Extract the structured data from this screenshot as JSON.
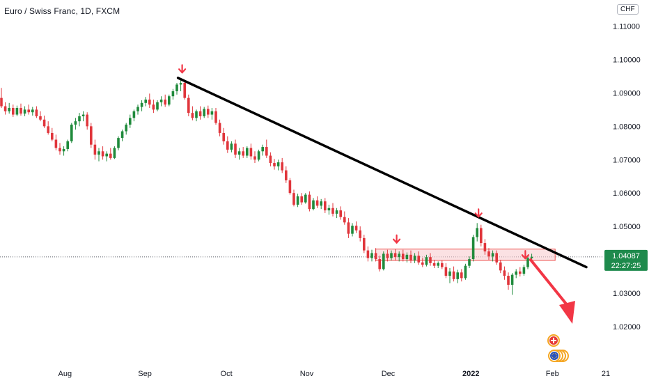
{
  "chart_data": {
    "type": "candlestick",
    "title": "Euro / Swiss Franc, 1D, FXCM",
    "currency_badge": "CHF",
    "y_ticks": [
      1.11,
      1.1,
      1.09,
      1.08,
      1.07,
      1.06,
      1.05,
      1.04,
      1.03,
      1.02
    ],
    "y_tick_labels": [
      "1.11000",
      "1.10000",
      "1.09000",
      "1.08000",
      "1.07000",
      "1.06000",
      "1.05000",
      "",
      "1.03000",
      "1.02000"
    ],
    "ylim": [
      1.011,
      1.112
    ],
    "x_labels": [
      "Aug",
      "Sep",
      "Oct",
      "Nov",
      "Dec",
      "2022",
      "Feb",
      "21"
    ],
    "last_price": "1.04087",
    "countdown": "22:27:25",
    "grid": false,
    "candles": [
      {
        "o": 1.0885,
        "h": 1.0915,
        "l": 1.0855,
        "c": 1.086
      },
      {
        "o": 1.086,
        "h": 1.0872,
        "l": 1.0835,
        "c": 1.0845
      },
      {
        "o": 1.0845,
        "h": 1.087,
        "l": 1.0838,
        "c": 1.0855
      },
      {
        "o": 1.0855,
        "h": 1.0865,
        "l": 1.0828,
        "c": 1.0835
      },
      {
        "o": 1.0835,
        "h": 1.0862,
        "l": 1.083,
        "c": 1.0855
      },
      {
        "o": 1.0855,
        "h": 1.0868,
        "l": 1.0832,
        "c": 1.0838
      },
      {
        "o": 1.0838,
        "h": 1.086,
        "l": 1.083,
        "c": 1.085
      },
      {
        "o": 1.085,
        "h": 1.0865,
        "l": 1.0835,
        "c": 1.0842
      },
      {
        "o": 1.0842,
        "h": 1.0858,
        "l": 1.0832,
        "c": 1.085
      },
      {
        "o": 1.085,
        "h": 1.086,
        "l": 1.0825,
        "c": 1.083
      },
      {
        "o": 1.083,
        "h": 1.0845,
        "l": 1.0815,
        "c": 1.082
      },
      {
        "o": 1.082,
        "h": 1.0832,
        "l": 1.0795,
        "c": 1.08
      },
      {
        "o": 1.08,
        "h": 1.0815,
        "l": 1.0775,
        "c": 1.078
      },
      {
        "o": 1.078,
        "h": 1.0795,
        "l": 1.0755,
        "c": 1.076
      },
      {
        "o": 1.076,
        "h": 1.0775,
        "l": 1.0728,
        "c": 1.0735
      },
      {
        "o": 1.0735,
        "h": 1.075,
        "l": 1.0715,
        "c": 1.0725
      },
      {
        "o": 1.0725,
        "h": 1.074,
        "l": 1.0712,
        "c": 1.0732
      },
      {
        "o": 1.0732,
        "h": 1.076,
        "l": 1.0725,
        "c": 1.0755
      },
      {
        "o": 1.0755,
        "h": 1.081,
        "l": 1.075,
        "c": 1.0805
      },
      {
        "o": 1.0805,
        "h": 1.0825,
        "l": 1.079,
        "c": 1.0815
      },
      {
        "o": 1.0815,
        "h": 1.084,
        "l": 1.08,
        "c": 1.083
      },
      {
        "o": 1.083,
        "h": 1.0845,
        "l": 1.0815,
        "c": 1.0835
      },
      {
        "o": 1.0835,
        "h": 1.0842,
        "l": 1.079,
        "c": 1.08
      },
      {
        "o": 1.08,
        "h": 1.081,
        "l": 1.0735,
        "c": 1.0745
      },
      {
        "o": 1.0745,
        "h": 1.076,
        "l": 1.07,
        "c": 1.0715
      },
      {
        "o": 1.0715,
        "h": 1.0735,
        "l": 1.0695,
        "c": 1.0725
      },
      {
        "o": 1.0725,
        "h": 1.074,
        "l": 1.07,
        "c": 1.071
      },
      {
        "o": 1.071,
        "h": 1.0725,
        "l": 1.0695,
        "c": 1.0718
      },
      {
        "o": 1.0718,
        "h": 1.0735,
        "l": 1.07,
        "c": 1.0705
      },
      {
        "o": 1.0705,
        "h": 1.074,
        "l": 1.0702,
        "c": 1.0735
      },
      {
        "o": 1.0735,
        "h": 1.077,
        "l": 1.0728,
        "c": 1.0765
      },
      {
        "o": 1.0765,
        "h": 1.079,
        "l": 1.0755,
        "c": 1.0785
      },
      {
        "o": 1.0785,
        "h": 1.081,
        "l": 1.0775,
        "c": 1.0805
      },
      {
        "o": 1.0805,
        "h": 1.0835,
        "l": 1.0795,
        "c": 1.0825
      },
      {
        "o": 1.0825,
        "h": 1.085,
        "l": 1.0815,
        "c": 1.0845
      },
      {
        "o": 1.0845,
        "h": 1.0865,
        "l": 1.0835,
        "c": 1.0858
      },
      {
        "o": 1.0858,
        "h": 1.0878,
        "l": 1.0845,
        "c": 1.087
      },
      {
        "o": 1.087,
        "h": 1.0888,
        "l": 1.086,
        "c": 1.088
      },
      {
        "o": 1.088,
        "h": 1.0898,
        "l": 1.0855,
        "c": 1.0865
      },
      {
        "o": 1.0865,
        "h": 1.088,
        "l": 1.084,
        "c": 1.085
      },
      {
        "o": 1.085,
        "h": 1.0878,
        "l": 1.0845,
        "c": 1.0872
      },
      {
        "o": 1.0872,
        "h": 1.089,
        "l": 1.086,
        "c": 1.088
      },
      {
        "o": 1.088,
        "h": 1.0895,
        "l": 1.0858,
        "c": 1.0865
      },
      {
        "o": 1.0865,
        "h": 1.0895,
        "l": 1.086,
        "c": 1.089
      },
      {
        "o": 1.089,
        "h": 1.0912,
        "l": 1.088,
        "c": 1.0905
      },
      {
        "o": 1.0905,
        "h": 1.093,
        "l": 1.0895,
        "c": 1.0925
      },
      {
        "o": 1.0925,
        "h": 1.0942,
        "l": 1.0905,
        "c": 1.093
      },
      {
        "o": 1.093,
        "h": 1.0935,
        "l": 1.088,
        "c": 1.0885
      },
      {
        "o": 1.0885,
        "h": 1.0895,
        "l": 1.083,
        "c": 1.084
      },
      {
        "o": 1.084,
        "h": 1.086,
        "l": 1.0818,
        "c": 1.0825
      },
      {
        "o": 1.0825,
        "h": 1.085,
        "l": 1.0815,
        "c": 1.0845
      },
      {
        "o": 1.0845,
        "h": 1.086,
        "l": 1.082,
        "c": 1.083
      },
      {
        "o": 1.083,
        "h": 1.0858,
        "l": 1.0825,
        "c": 1.0852
      },
      {
        "o": 1.0852,
        "h": 1.0862,
        "l": 1.0825,
        "c": 1.0835
      },
      {
        "o": 1.0835,
        "h": 1.0855,
        "l": 1.082,
        "c": 1.0845
      },
      {
        "o": 1.0845,
        "h": 1.0855,
        "l": 1.0805,
        "c": 1.081
      },
      {
        "o": 1.081,
        "h": 1.082,
        "l": 1.077,
        "c": 1.078
      },
      {
        "o": 1.078,
        "h": 1.0795,
        "l": 1.0745,
        "c": 1.0755
      },
      {
        "o": 1.0755,
        "h": 1.077,
        "l": 1.072,
        "c": 1.073
      },
      {
        "o": 1.073,
        "h": 1.0755,
        "l": 1.0722,
        "c": 1.0748
      },
      {
        "o": 1.0748,
        "h": 1.076,
        "l": 1.0705,
        "c": 1.0715
      },
      {
        "o": 1.0715,
        "h": 1.0735,
        "l": 1.07,
        "c": 1.0725
      },
      {
        "o": 1.0725,
        "h": 1.0738,
        "l": 1.0705,
        "c": 1.0712
      },
      {
        "o": 1.0712,
        "h": 1.074,
        "l": 1.0705,
        "c": 1.0735
      },
      {
        "o": 1.0735,
        "h": 1.0748,
        "l": 1.07,
        "c": 1.071
      },
      {
        "o": 1.071,
        "h": 1.0725,
        "l": 1.069,
        "c": 1.07
      },
      {
        "o": 1.07,
        "h": 1.073,
        "l": 1.0695,
        "c": 1.0725
      },
      {
        "o": 1.0725,
        "h": 1.0745,
        "l": 1.0712,
        "c": 1.0738
      },
      {
        "o": 1.0738,
        "h": 1.076,
        "l": 1.0705,
        "c": 1.0712
      },
      {
        "o": 1.0712,
        "h": 1.0722,
        "l": 1.068,
        "c": 1.069
      },
      {
        "o": 1.069,
        "h": 1.0702,
        "l": 1.067,
        "c": 1.068
      },
      {
        "o": 1.068,
        "h": 1.07,
        "l": 1.0668,
        "c": 1.0692
      },
      {
        "o": 1.0692,
        "h": 1.0705,
        "l": 1.066,
        "c": 1.0668
      },
      {
        "o": 1.0668,
        "h": 1.068,
        "l": 1.063,
        "c": 1.0638
      },
      {
        "o": 1.0638,
        "h": 1.0645,
        "l": 1.0595,
        "c": 1.06
      },
      {
        "o": 1.06,
        "h": 1.061,
        "l": 1.056,
        "c": 1.0565
      },
      {
        "o": 1.0565,
        "h": 1.0598,
        "l": 1.0558,
        "c": 1.059
      },
      {
        "o": 1.059,
        "h": 1.06,
        "l": 1.0565,
        "c": 1.0572
      },
      {
        "o": 1.0572,
        "h": 1.06,
        "l": 1.0568,
        "c": 1.0595
      },
      {
        "o": 1.0595,
        "h": 1.0605,
        "l": 1.0545,
        "c": 1.0552
      },
      {
        "o": 1.0552,
        "h": 1.0585,
        "l": 1.0548,
        "c": 1.0578
      },
      {
        "o": 1.0578,
        "h": 1.059,
        "l": 1.0555,
        "c": 1.0562
      },
      {
        "o": 1.0562,
        "h": 1.0582,
        "l": 1.0552,
        "c": 1.0575
      },
      {
        "o": 1.0575,
        "h": 1.0585,
        "l": 1.054,
        "c": 1.0548
      },
      {
        "o": 1.0548,
        "h": 1.0565,
        "l": 1.0535,
        "c": 1.0555
      },
      {
        "o": 1.0555,
        "h": 1.057,
        "l": 1.053,
        "c": 1.0538
      },
      {
        "o": 1.0538,
        "h": 1.0555,
        "l": 1.0525,
        "c": 1.0548
      },
      {
        "o": 1.0548,
        "h": 1.056,
        "l": 1.052,
        "c": 1.0528
      },
      {
        "o": 1.0528,
        "h": 1.0545,
        "l": 1.0505,
        "c": 1.0512
      },
      {
        "o": 1.0512,
        "h": 1.0525,
        "l": 1.0465,
        "c": 1.0478
      },
      {
        "o": 1.0478,
        "h": 1.051,
        "l": 1.047,
        "c": 1.0502
      },
      {
        "o": 1.0502,
        "h": 1.0515,
        "l": 1.048,
        "c": 1.0488
      },
      {
        "o": 1.0488,
        "h": 1.05,
        "l": 1.0455,
        "c": 1.0465
      },
      {
        "o": 1.0465,
        "h": 1.0475,
        "l": 1.042,
        "c": 1.0428
      },
      {
        "o": 1.0428,
        "h": 1.044,
        "l": 1.0395,
        "c": 1.0405
      },
      {
        "o": 1.0405,
        "h": 1.043,
        "l": 1.0395,
        "c": 1.042
      },
      {
        "o": 1.042,
        "h": 1.0435,
        "l": 1.0395,
        "c": 1.0402
      },
      {
        "o": 1.0402,
        "h": 1.0412,
        "l": 1.0365,
        "c": 1.0372
      },
      {
        "o": 1.0372,
        "h": 1.0425,
        "l": 1.0368,
        "c": 1.0418
      },
      {
        "o": 1.0418,
        "h": 1.043,
        "l": 1.0395,
        "c": 1.0405
      },
      {
        "o": 1.0405,
        "h": 1.0428,
        "l": 1.0398,
        "c": 1.042
      },
      {
        "o": 1.042,
        "h": 1.0432,
        "l": 1.0398,
        "c": 1.0408
      },
      {
        "o": 1.0408,
        "h": 1.0425,
        "l": 1.0395,
        "c": 1.0418
      },
      {
        "o": 1.0418,
        "h": 1.043,
        "l": 1.0395,
        "c": 1.0402
      },
      {
        "o": 1.0402,
        "h": 1.0422,
        "l": 1.0392,
        "c": 1.0415
      },
      {
        "o": 1.0415,
        "h": 1.0428,
        "l": 1.039,
        "c": 1.0398
      },
      {
        "o": 1.0398,
        "h": 1.042,
        "l": 1.039,
        "c": 1.0412
      },
      {
        "o": 1.0412,
        "h": 1.0425,
        "l": 1.0385,
        "c": 1.0392
      },
      {
        "o": 1.0392,
        "h": 1.0405,
        "l": 1.0378,
        "c": 1.0385
      },
      {
        "o": 1.0385,
        "h": 1.0415,
        "l": 1.038,
        "c": 1.0408
      },
      {
        "o": 1.0408,
        "h": 1.042,
        "l": 1.0382,
        "c": 1.039
      },
      {
        "o": 1.039,
        "h": 1.04,
        "l": 1.0375,
        "c": 1.0382
      },
      {
        "o": 1.0382,
        "h": 1.0395,
        "l": 1.0375,
        "c": 1.039
      },
      {
        "o": 1.039,
        "h": 1.0398,
        "l": 1.0372,
        "c": 1.0378
      },
      {
        "o": 1.0378,
        "h": 1.039,
        "l": 1.0345,
        "c": 1.0352
      },
      {
        "o": 1.0352,
        "h": 1.0375,
        "l": 1.033,
        "c": 1.0365
      },
      {
        "o": 1.0365,
        "h": 1.038,
        "l": 1.0335,
        "c": 1.0342
      },
      {
        "o": 1.0342,
        "h": 1.037,
        "l": 1.033,
        "c": 1.0362
      },
      {
        "o": 1.0362,
        "h": 1.0372,
        "l": 1.0335,
        "c": 1.0345
      },
      {
        "o": 1.0345,
        "h": 1.0388,
        "l": 1.034,
        "c": 1.0382
      },
      {
        "o": 1.0382,
        "h": 1.041,
        "l": 1.0375,
        "c": 1.0402
      },
      {
        "o": 1.0402,
        "h": 1.0475,
        "l": 1.0395,
        "c": 1.0468
      },
      {
        "o": 1.0468,
        "h": 1.051,
        "l": 1.0455,
        "c": 1.0495
      },
      {
        "o": 1.0495,
        "h": 1.0505,
        "l": 1.044,
        "c": 1.045
      },
      {
        "o": 1.045,
        "h": 1.0462,
        "l": 1.0415,
        "c": 1.0425
      },
      {
        "o": 1.0425,
        "h": 1.0435,
        "l": 1.04,
        "c": 1.041
      },
      {
        "o": 1.041,
        "h": 1.0428,
        "l": 1.0395,
        "c": 1.042
      },
      {
        "o": 1.042,
        "h": 1.0428,
        "l": 1.0385,
        "c": 1.0392
      },
      {
        "o": 1.0392,
        "h": 1.04,
        "l": 1.036,
        "c": 1.0368
      },
      {
        "o": 1.0368,
        "h": 1.038,
        "l": 1.034,
        "c": 1.0352
      },
      {
        "o": 1.0352,
        "h": 1.0362,
        "l": 1.031,
        "c": 1.0325
      },
      {
        "o": 1.0325,
        "h": 1.036,
        "l": 1.0295,
        "c": 1.0355
      },
      {
        "o": 1.0355,
        "h": 1.0372,
        "l": 1.0345,
        "c": 1.0365
      },
      {
        "o": 1.0365,
        "h": 1.0378,
        "l": 1.035,
        "c": 1.0358
      },
      {
        "o": 1.0358,
        "h": 1.0385,
        "l": 1.0352,
        "c": 1.0378
      },
      {
        "o": 1.0378,
        "h": 1.0412,
        "l": 1.0372,
        "c": 1.0405
      },
      {
        "o": 1.0405,
        "h": 1.0418,
        "l": 1.0395,
        "c": 1.0409
      }
    ],
    "annotations": {
      "trendline": {
        "from": {
          "bar": 0,
          "price": 1.0945,
          "label": "peak"
        },
        "to": {
          "bar": 0,
          "price": 1.04
        }
      },
      "resistance_zone": {
        "high": 1.0432,
        "low": 1.0398
      },
      "down_markers": 4,
      "projection_arrow": "down"
    },
    "colors": {
      "up": "#26a69a",
      "up_body": "#1f8a3b",
      "down": "#ef5350",
      "down_body": "#e0353b",
      "trendline": "#000000",
      "zone_fill": "#f8c8cc",
      "zone_border": "#ef5350",
      "marker": "#f23645",
      "price_tag": "#1e8a4c",
      "axis_text": "#131722"
    }
  }
}
